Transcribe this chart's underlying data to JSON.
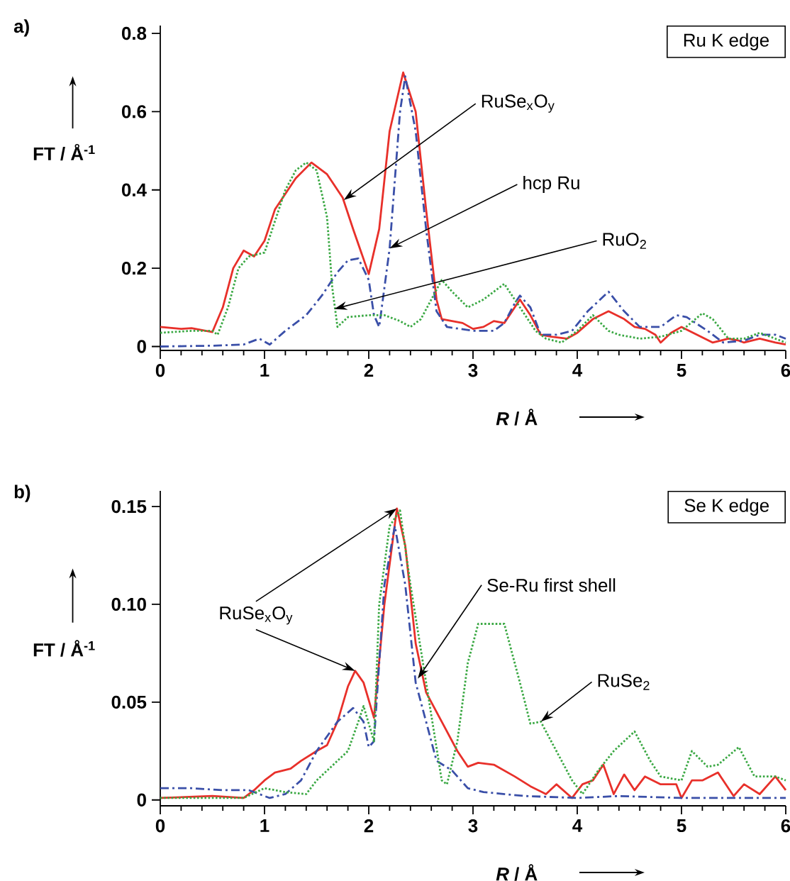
{
  "chart_data": [
    {
      "type": "line",
      "title": "Ru K edge",
      "xlabel": "*R* / Å",
      "ylabel": "FT / Å$^{-1}$",
      "annotations": [
        "a)",
        {
          "text": "RuSe$_{x}$O$_{y}$",
          "x": 1.76,
          "y": 0.374
        },
        {
          "text": "hcp Ru",
          "x": 2.2,
          "y": 0.251
        },
        {
          "text": "RuO$_{2}$",
          "x": 1.67,
          "y": 0.096
        }
      ],
      "xlim": [
        0,
        6
      ],
      "ylim": [
        -0.01,
        0.82
      ],
      "xticks": [
        0,
        1,
        2,
        3,
        4,
        5,
        6
      ],
      "yticks": [
        0,
        0.2,
        0.4,
        0.6,
        0.8
      ],
      "series": [
        {
          "color": "#e8302a",
          "line_style": "solid",
          "x": [
            0,
            0.2,
            0.3,
            0.5,
            0.6,
            0.7,
            0.8,
            0.9,
            1.0,
            1.1,
            1.2,
            1.3,
            1.45,
            1.6,
            1.75,
            1.85,
            2.0,
            2.1,
            2.2,
            2.33,
            2.45,
            2.55,
            2.65,
            2.7,
            2.9,
            3.0,
            3.1,
            3.2,
            3.3,
            3.45,
            3.55,
            3.65,
            3.75,
            3.9,
            4.0,
            4.15,
            4.3,
            4.45,
            4.55,
            4.65,
            4.75,
            4.8,
            4.9,
            5.0,
            5.15,
            5.3,
            5.45,
            5.55,
            5.6,
            5.75,
            5.9,
            6.0
          ],
          "values": [
            0.05,
            0.045,
            0.047,
            0.037,
            0.1,
            0.2,
            0.245,
            0.23,
            0.27,
            0.35,
            0.39,
            0.43,
            0.47,
            0.44,
            0.38,
            0.3,
            0.185,
            0.3,
            0.55,
            0.7,
            0.6,
            0.35,
            0.12,
            0.07,
            0.06,
            0.045,
            0.05,
            0.065,
            0.06,
            0.12,
            0.08,
            0.03,
            0.025,
            0.02,
            0.035,
            0.07,
            0.09,
            0.07,
            0.05,
            0.045,
            0.03,
            0.01,
            0.035,
            0.05,
            0.03,
            0.01,
            0.02,
            0.015,
            0.01,
            0.02,
            0.01,
            0.005
          ]
        },
        {
          "color": "#3a4fa8",
          "line_style": "dashdot",
          "x": [
            0,
            0.5,
            0.8,
            0.95,
            1.05,
            1.2,
            1.4,
            1.55,
            1.7,
            1.8,
            1.9,
            2.0,
            2.05,
            2.1,
            2.2,
            2.3,
            2.35,
            2.45,
            2.55,
            2.65,
            2.75,
            3.0,
            3.2,
            3.3,
            3.4,
            3.45,
            3.55,
            3.65,
            3.8,
            3.95,
            4.1,
            4.3,
            4.45,
            4.6,
            4.8,
            4.95,
            5.05,
            5.25,
            5.4,
            5.6,
            5.75,
            5.9,
            6.0
          ],
          "values": [
            0,
            0.002,
            0.005,
            0.02,
            0.005,
            0.04,
            0.08,
            0.13,
            0.19,
            0.22,
            0.225,
            0.17,
            0.08,
            0.05,
            0.25,
            0.6,
            0.69,
            0.55,
            0.3,
            0.09,
            0.05,
            0.04,
            0.04,
            0.06,
            0.11,
            0.13,
            0.1,
            0.03,
            0.03,
            0.04,
            0.09,
            0.14,
            0.09,
            0.05,
            0.05,
            0.08,
            0.075,
            0.04,
            0.01,
            0.015,
            0.03,
            0.03,
            0.02
          ]
        },
        {
          "color": "#3aa843",
          "line_style": "dotted",
          "x": [
            0,
            0.3,
            0.5,
            0.55,
            0.65,
            0.75,
            0.85,
            1.0,
            1.1,
            1.2,
            1.3,
            1.4,
            1.5,
            1.6,
            1.65,
            1.7,
            1.8,
            2.0,
            2.15,
            2.3,
            2.4,
            2.5,
            2.6,
            2.7,
            2.8,
            2.95,
            3.1,
            3.3,
            3.45,
            3.6,
            3.7,
            3.85,
            4.0,
            4.15,
            4.3,
            4.4,
            4.6,
            4.8,
            5.0,
            5.2,
            5.3,
            5.45,
            5.6,
            5.75,
            6.0
          ],
          "values": [
            0.035,
            0.04,
            0.04,
            0.03,
            0.1,
            0.2,
            0.23,
            0.24,
            0.32,
            0.4,
            0.45,
            0.47,
            0.45,
            0.33,
            0.15,
            0.05,
            0.075,
            0.08,
            0.08,
            0.065,
            0.05,
            0.07,
            0.12,
            0.17,
            0.14,
            0.1,
            0.12,
            0.16,
            0.1,
            0.04,
            0.02,
            0.01,
            0.04,
            0.08,
            0.04,
            0.03,
            0.02,
            0.025,
            0.04,
            0.085,
            0.07,
            0.02,
            0.02,
            0.035,
            0.01
          ]
        }
      ]
    },
    {
      "type": "line",
      "title": "Se K edge",
      "xlabel": "*R* / Å",
      "ylabel": "FT / Å$^{-1}$",
      "annotations": [
        "b)",
        {
          "text": "RuSe$_{x}$O$_{y}$",
          "x": 1.87,
          "y": 0.066
        },
        {
          "text": "Se-Ru first shell",
          "x": 2.47,
          "y": 0.062
        },
        {
          "text": "RuSe$_{2}$",
          "x": 3.65,
          "y": 0.04
        }
      ],
      "xlim": [
        0,
        6
      ],
      "ylim": [
        -0.003,
        0.158
      ],
      "xticks": [
        0,
        1,
        2,
        3,
        4,
        5,
        6
      ],
      "yticks": [
        0,
        0.05,
        {
          "value": 0.1,
          "label": "0.10"
        },
        0.15
      ],
      "series": [
        {
          "color": "#e8302a",
          "line_style": "solid",
          "x": [
            0,
            0.5,
            0.8,
            0.9,
            1.0,
            1.1,
            1.25,
            1.35,
            1.5,
            1.6,
            1.7,
            1.8,
            1.87,
            1.95,
            2.05,
            2.15,
            2.27,
            2.35,
            2.45,
            2.55,
            2.7,
            2.85,
            2.95,
            3.05,
            3.2,
            3.4,
            3.55,
            3.7,
            3.8,
            3.95,
            4.05,
            4.15,
            4.25,
            4.35,
            4.45,
            4.55,
            4.65,
            4.8,
            4.95,
            5.0,
            5.1,
            5.2,
            5.35,
            5.5,
            5.6,
            5.75,
            5.9,
            6.0
          ],
          "values": [
            0.001,
            0.002,
            0.001,
            0.005,
            0.01,
            0.014,
            0.016,
            0.02,
            0.025,
            0.028,
            0.04,
            0.058,
            0.066,
            0.06,
            0.042,
            0.1,
            0.149,
            0.13,
            0.08,
            0.055,
            0.04,
            0.025,
            0.017,
            0.019,
            0.018,
            0.012,
            0.007,
            0.003,
            0.008,
            0.001,
            0.008,
            0.01,
            0.018,
            0.003,
            0.013,
            0.005,
            0.012,
            0.008,
            0.008,
            0.001,
            0.01,
            0.01,
            0.014,
            0.002,
            0.008,
            0.003,
            0.012,
            0.005
          ]
        },
        {
          "color": "#3a4fa8",
          "line_style": "dashdot",
          "x": [
            0,
            0.3,
            0.6,
            0.85,
            1.05,
            1.2,
            1.35,
            1.5,
            1.7,
            1.85,
            1.95,
            2.0,
            2.05,
            2.15,
            2.25,
            2.35,
            2.45,
            2.55,
            2.65,
            2.8,
            2.95,
            3.1,
            3.5,
            4.0,
            4.4,
            5.0,
            6.0
          ],
          "values": [
            0.006,
            0.006,
            0.005,
            0.005,
            0.001,
            0.003,
            0.01,
            0.025,
            0.04,
            0.047,
            0.04,
            0.027,
            0.03,
            0.11,
            0.14,
            0.11,
            0.06,
            0.04,
            0.02,
            0.015,
            0.006,
            0.004,
            0.002,
            0.001,
            0.002,
            0.001,
            0.001
          ]
        },
        {
          "color": "#3aa843",
          "line_style": "dotted",
          "x": [
            0,
            0.8,
            1.0,
            1.2,
            1.4,
            1.5,
            1.7,
            1.8,
            1.9,
            1.95,
            2.05,
            2.1,
            2.2,
            2.3,
            2.4,
            2.55,
            2.7,
            2.75,
            2.85,
            2.95,
            3.05,
            3.3,
            3.45,
            3.55,
            3.65,
            3.8,
            3.95,
            4.05,
            4.2,
            4.35,
            4.55,
            4.7,
            4.8,
            5.0,
            5.1,
            5.25,
            5.35,
            5.55,
            5.7,
            5.9,
            6.0
          ],
          "values": [
            0.001,
            0.001,
            0.006,
            0.004,
            0.003,
            0.01,
            0.02,
            0.025,
            0.04,
            0.048,
            0.03,
            0.1,
            0.14,
            0.148,
            0.11,
            0.06,
            0.01,
            0.008,
            0.03,
            0.07,
            0.09,
            0.09,
            0.06,
            0.039,
            0.04,
            0.025,
            0.01,
            0.003,
            0.015,
            0.025,
            0.035,
            0.02,
            0.012,
            0.01,
            0.025,
            0.017,
            0.018,
            0.027,
            0.012,
            0.012,
            0.01
          ]
        }
      ]
    }
  ]
}
